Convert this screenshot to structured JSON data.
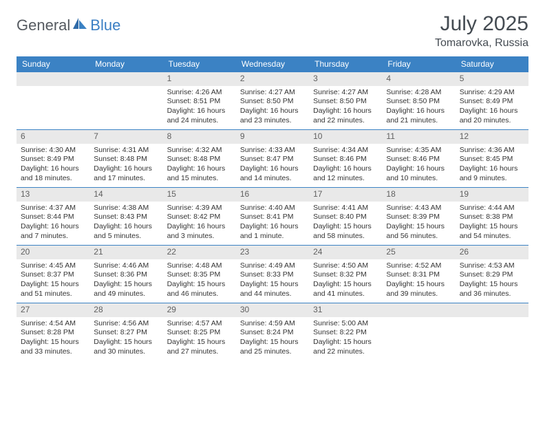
{
  "brand": {
    "part1": "General",
    "part2": "Blue"
  },
  "title": "July 2025",
  "subtitle": "Tomarovka, Russia",
  "colors": {
    "header_bg": "#3b82c4",
    "header_text": "#ffffff",
    "daynum_bg": "#e9e9e9",
    "cell_border": "#3b82c4",
    "logo_gray": "#555a60",
    "logo_blue": "#3b7fc4"
  },
  "day_headers": [
    "Sunday",
    "Monday",
    "Tuesday",
    "Wednesday",
    "Thursday",
    "Friday",
    "Saturday"
  ],
  "weeks": [
    [
      {
        "n": "",
        "lines": []
      },
      {
        "n": "",
        "lines": []
      },
      {
        "n": "1",
        "lines": [
          "Sunrise: 4:26 AM",
          "Sunset: 8:51 PM",
          "Daylight: 16 hours",
          "and 24 minutes."
        ]
      },
      {
        "n": "2",
        "lines": [
          "Sunrise: 4:27 AM",
          "Sunset: 8:50 PM",
          "Daylight: 16 hours",
          "and 23 minutes."
        ]
      },
      {
        "n": "3",
        "lines": [
          "Sunrise: 4:27 AM",
          "Sunset: 8:50 PM",
          "Daylight: 16 hours",
          "and 22 minutes."
        ]
      },
      {
        "n": "4",
        "lines": [
          "Sunrise: 4:28 AM",
          "Sunset: 8:50 PM",
          "Daylight: 16 hours",
          "and 21 minutes."
        ]
      },
      {
        "n": "5",
        "lines": [
          "Sunrise: 4:29 AM",
          "Sunset: 8:49 PM",
          "Daylight: 16 hours",
          "and 20 minutes."
        ]
      }
    ],
    [
      {
        "n": "6",
        "lines": [
          "Sunrise: 4:30 AM",
          "Sunset: 8:49 PM",
          "Daylight: 16 hours",
          "and 18 minutes."
        ]
      },
      {
        "n": "7",
        "lines": [
          "Sunrise: 4:31 AM",
          "Sunset: 8:48 PM",
          "Daylight: 16 hours",
          "and 17 minutes."
        ]
      },
      {
        "n": "8",
        "lines": [
          "Sunrise: 4:32 AM",
          "Sunset: 8:48 PM",
          "Daylight: 16 hours",
          "and 15 minutes."
        ]
      },
      {
        "n": "9",
        "lines": [
          "Sunrise: 4:33 AM",
          "Sunset: 8:47 PM",
          "Daylight: 16 hours",
          "and 14 minutes."
        ]
      },
      {
        "n": "10",
        "lines": [
          "Sunrise: 4:34 AM",
          "Sunset: 8:46 PM",
          "Daylight: 16 hours",
          "and 12 minutes."
        ]
      },
      {
        "n": "11",
        "lines": [
          "Sunrise: 4:35 AM",
          "Sunset: 8:46 PM",
          "Daylight: 16 hours",
          "and 10 minutes."
        ]
      },
      {
        "n": "12",
        "lines": [
          "Sunrise: 4:36 AM",
          "Sunset: 8:45 PM",
          "Daylight: 16 hours",
          "and 9 minutes."
        ]
      }
    ],
    [
      {
        "n": "13",
        "lines": [
          "Sunrise: 4:37 AM",
          "Sunset: 8:44 PM",
          "Daylight: 16 hours",
          "and 7 minutes."
        ]
      },
      {
        "n": "14",
        "lines": [
          "Sunrise: 4:38 AM",
          "Sunset: 8:43 PM",
          "Daylight: 16 hours",
          "and 5 minutes."
        ]
      },
      {
        "n": "15",
        "lines": [
          "Sunrise: 4:39 AM",
          "Sunset: 8:42 PM",
          "Daylight: 16 hours",
          "and 3 minutes."
        ]
      },
      {
        "n": "16",
        "lines": [
          "Sunrise: 4:40 AM",
          "Sunset: 8:41 PM",
          "Daylight: 16 hours",
          "and 1 minute."
        ]
      },
      {
        "n": "17",
        "lines": [
          "Sunrise: 4:41 AM",
          "Sunset: 8:40 PM",
          "Daylight: 15 hours",
          "and 58 minutes."
        ]
      },
      {
        "n": "18",
        "lines": [
          "Sunrise: 4:43 AM",
          "Sunset: 8:39 PM",
          "Daylight: 15 hours",
          "and 56 minutes."
        ]
      },
      {
        "n": "19",
        "lines": [
          "Sunrise: 4:44 AM",
          "Sunset: 8:38 PM",
          "Daylight: 15 hours",
          "and 54 minutes."
        ]
      }
    ],
    [
      {
        "n": "20",
        "lines": [
          "Sunrise: 4:45 AM",
          "Sunset: 8:37 PM",
          "Daylight: 15 hours",
          "and 51 minutes."
        ]
      },
      {
        "n": "21",
        "lines": [
          "Sunrise: 4:46 AM",
          "Sunset: 8:36 PM",
          "Daylight: 15 hours",
          "and 49 minutes."
        ]
      },
      {
        "n": "22",
        "lines": [
          "Sunrise: 4:48 AM",
          "Sunset: 8:35 PM",
          "Daylight: 15 hours",
          "and 46 minutes."
        ]
      },
      {
        "n": "23",
        "lines": [
          "Sunrise: 4:49 AM",
          "Sunset: 8:33 PM",
          "Daylight: 15 hours",
          "and 44 minutes."
        ]
      },
      {
        "n": "24",
        "lines": [
          "Sunrise: 4:50 AM",
          "Sunset: 8:32 PM",
          "Daylight: 15 hours",
          "and 41 minutes."
        ]
      },
      {
        "n": "25",
        "lines": [
          "Sunrise: 4:52 AM",
          "Sunset: 8:31 PM",
          "Daylight: 15 hours",
          "and 39 minutes."
        ]
      },
      {
        "n": "26",
        "lines": [
          "Sunrise: 4:53 AM",
          "Sunset: 8:29 PM",
          "Daylight: 15 hours",
          "and 36 minutes."
        ]
      }
    ],
    [
      {
        "n": "27",
        "lines": [
          "Sunrise: 4:54 AM",
          "Sunset: 8:28 PM",
          "Daylight: 15 hours",
          "and 33 minutes."
        ]
      },
      {
        "n": "28",
        "lines": [
          "Sunrise: 4:56 AM",
          "Sunset: 8:27 PM",
          "Daylight: 15 hours",
          "and 30 minutes."
        ]
      },
      {
        "n": "29",
        "lines": [
          "Sunrise: 4:57 AM",
          "Sunset: 8:25 PM",
          "Daylight: 15 hours",
          "and 27 minutes."
        ]
      },
      {
        "n": "30",
        "lines": [
          "Sunrise: 4:59 AM",
          "Sunset: 8:24 PM",
          "Daylight: 15 hours",
          "and 25 minutes."
        ]
      },
      {
        "n": "31",
        "lines": [
          "Sunrise: 5:00 AM",
          "Sunset: 8:22 PM",
          "Daylight: 15 hours",
          "and 22 minutes."
        ]
      },
      {
        "n": "",
        "lines": []
      },
      {
        "n": "",
        "lines": []
      }
    ]
  ]
}
